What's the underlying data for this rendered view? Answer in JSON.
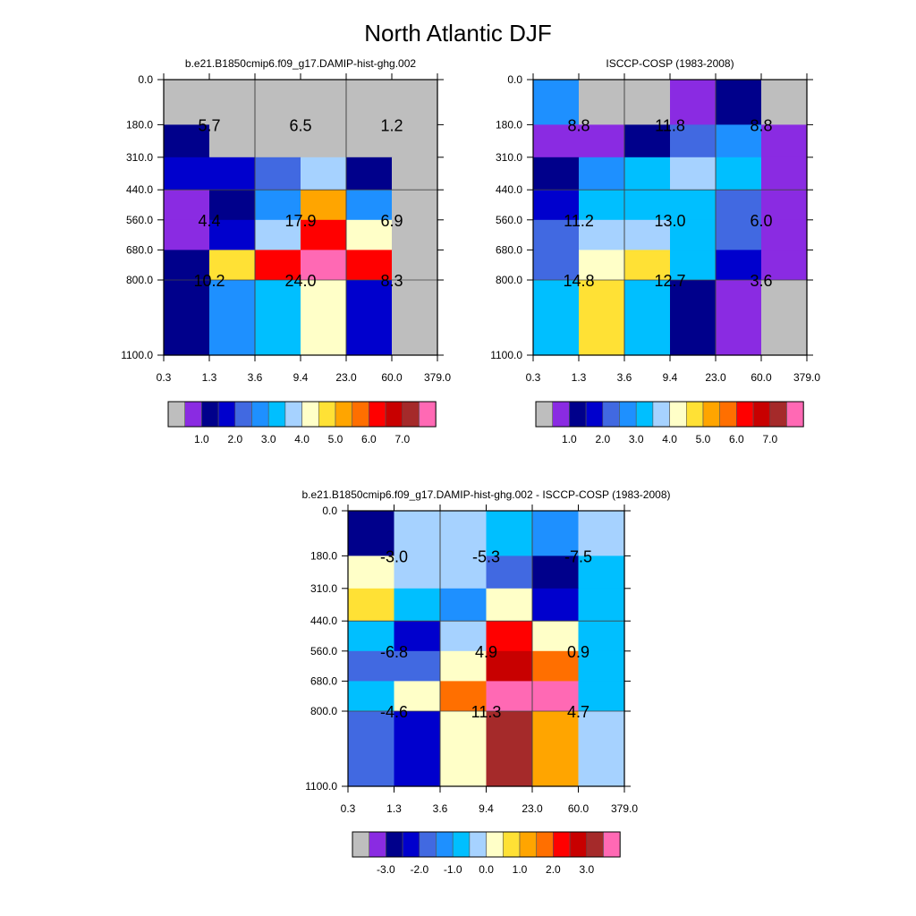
{
  "title": "North Atlantic DJF",
  "colors": {
    "gray": "#bebebe",
    "palette": [
      "#bebebe",
      "#8a2be2",
      "#00008b",
      "#0000cd",
      "#4169e1",
      "#1e90ff",
      "#00bfff",
      "#a6d2ff",
      "#ffffc8",
      "#ffe135",
      "#ffa500",
      "#ff6f00",
      "#ff0000",
      "#c80000",
      "#a52a2a",
      "#ff69b4"
    ]
  },
  "colorbars": {
    "model": {
      "labels": [
        "1.0",
        "2.0",
        "3.0",
        "4.0",
        "5.0",
        "6.0",
        "7.0"
      ]
    },
    "diff": {
      "labels": [
        "-3.0",
        "-2.0",
        "-1.0",
        "0.0",
        "1.0",
        "2.0",
        "3.0"
      ]
    }
  },
  "chart_data": [
    {
      "type": "heatmap",
      "title": "b.e21.B1850cmip6.f09_g17.DAMIP-hist-ghg.002",
      "x_ticks": [
        "0.3",
        "1.3",
        "3.6",
        "9.4",
        "23.0",
        "60.0",
        "379.0"
      ],
      "y_ticks": [
        "0.0",
        "180.0",
        "310.0",
        "440.0",
        "560.0",
        "680.0",
        "800.0",
        "1100.0"
      ],
      "cell_colors": [
        [
          0,
          0,
          0,
          0,
          0,
          0
        ],
        [
          2,
          0,
          0,
          0,
          0,
          0
        ],
        [
          3,
          3,
          4,
          7,
          2,
          0
        ],
        [
          1,
          2,
          5,
          10,
          5,
          0
        ],
        [
          1,
          3,
          7,
          12,
          8,
          0
        ],
        [
          2,
          9,
          12,
          15,
          12,
          0
        ],
        [
          2,
          5,
          6,
          8,
          3,
          0
        ]
      ],
      "box_labels": [
        [
          "5.7",
          "6.5",
          "1.2"
        ],
        [
          "4.4",
          "17.9",
          "6.9"
        ],
        [
          "10.2",
          "24.0",
          "8.3"
        ]
      ],
      "colorbar": "model"
    },
    {
      "type": "heatmap",
      "title": "ISCCP-COSP (1983-2008)",
      "x_ticks": [
        "0.3",
        "1.3",
        "3.6",
        "9.4",
        "23.0",
        "60.0",
        "379.0"
      ],
      "y_ticks": [
        "0.0",
        "180.0",
        "310.0",
        "440.0",
        "560.0",
        "680.0",
        "800.0",
        "1100.0"
      ],
      "cell_colors": [
        [
          5,
          0,
          0,
          1,
          2,
          0
        ],
        [
          1,
          1,
          2,
          4,
          5,
          1
        ],
        [
          2,
          5,
          6,
          7,
          6,
          1
        ],
        [
          3,
          6,
          6,
          6,
          4,
          1
        ],
        [
          4,
          7,
          7,
          6,
          4,
          1
        ],
        [
          4,
          8,
          9,
          6,
          3,
          1
        ],
        [
          6,
          9,
          6,
          2,
          1,
          0
        ]
      ],
      "box_labels": [
        [
          "8.8",
          "11.8",
          "8.8"
        ],
        [
          "11.2",
          "13.0",
          "6.0"
        ],
        [
          "14.8",
          "12.7",
          "3.6"
        ]
      ],
      "colorbar": "model"
    },
    {
      "type": "heatmap",
      "title": "b.e21.B1850cmip6.f09_g17.DAMIP-hist-ghg.002 - ISCCP-COSP (1983-2008)",
      "x_ticks": [
        "0.3",
        "1.3",
        "3.6",
        "9.4",
        "23.0",
        "60.0",
        "379.0"
      ],
      "y_ticks": [
        "0.0",
        "180.0",
        "310.0",
        "440.0",
        "560.0",
        "680.0",
        "800.0",
        "1100.0"
      ],
      "cell_colors": [
        [
          2,
          7,
          7,
          6,
          5,
          7
        ],
        [
          8,
          7,
          7,
          4,
          2,
          6
        ],
        [
          9,
          6,
          5,
          8,
          3,
          6
        ],
        [
          6,
          3,
          7,
          12,
          8,
          6
        ],
        [
          4,
          4,
          8,
          13,
          11,
          6
        ],
        [
          6,
          8,
          11,
          15,
          15,
          6
        ],
        [
          4,
          3,
          8,
          14,
          10,
          7
        ]
      ],
      "box_labels": [
        [
          "-3.0",
          "-5.3",
          "-7.5"
        ],
        [
          "-6.8",
          "4.9",
          "0.9"
        ],
        [
          "-4.6",
          "11.3",
          "4.7"
        ]
      ],
      "colorbar": "diff"
    }
  ]
}
